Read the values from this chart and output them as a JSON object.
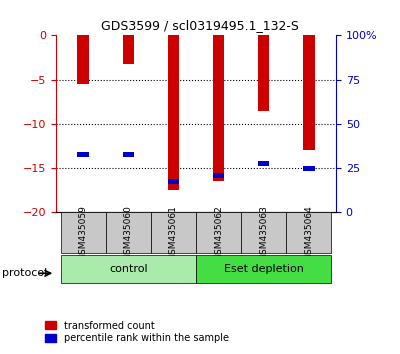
{
  "title": "GDS3599 / scl0319495.1_132-S",
  "samples": [
    "GSM435059",
    "GSM435060",
    "GSM435061",
    "GSM435062",
    "GSM435063",
    "GSM435064"
  ],
  "red_values": [
    -5.5,
    -3.2,
    -17.5,
    -16.5,
    -8.5,
    -13.0
  ],
  "blue_values_left": [
    -13.5,
    -13.5,
    -16.5,
    -15.8,
    -14.5,
    -15.0
  ],
  "groups": [
    {
      "label": "control",
      "color_light": "#b3f0b3",
      "color_dark": "#44cc44"
    },
    {
      "label": "Eset depletion",
      "color_light": "#44cc44",
      "color_dark": "#22aa22"
    }
  ],
  "ylim_left": [
    -20,
    0
  ],
  "ylim_right": [
    0,
    100
  ],
  "yticks_left": [
    0,
    -5,
    -10,
    -15,
    -20
  ],
  "yticks_right": [
    0,
    25,
    50,
    75,
    100
  ],
  "red_color": "#cc0000",
  "blue_color": "#0000cc",
  "bar_width": 0.25,
  "blue_bar_height": 0.55,
  "sample_label_bg": "#c8c8c8",
  "group_colors": [
    "#aaeaaa",
    "#44dd44"
  ],
  "protocol_label": "protocol",
  "legend1": "transformed count",
  "legend2": "percentile rank within the sample"
}
